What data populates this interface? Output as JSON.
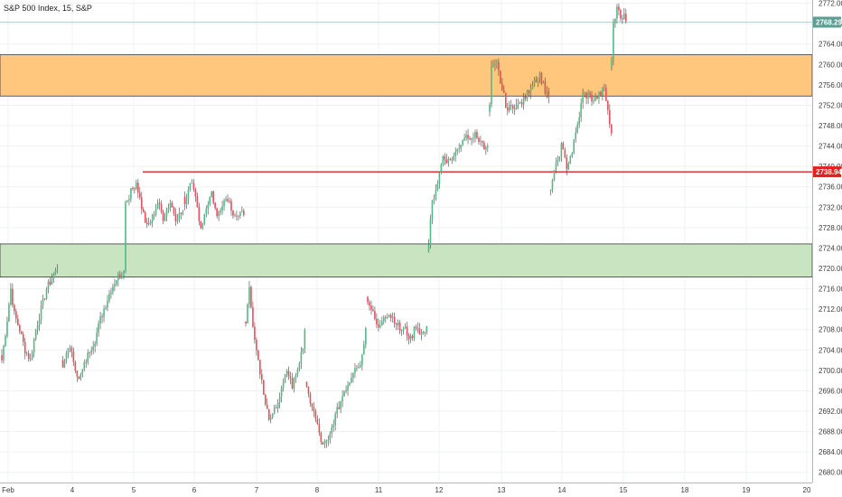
{
  "chart_data": {
    "type": "candlestick",
    "title": "S&P 500 Index, 15, S&P",
    "xlabel": "",
    "ylabel": "",
    "ylim": [
      2676.0,
      2774.0
    ],
    "x_ticks": [
      "Feb",
      "4",
      "5",
      "6",
      "7",
      "8",
      "11",
      "12",
      "13",
      "14",
      "15",
      "18",
      "19",
      "20"
    ],
    "y_ticks": [
      "2772.00",
      "2768.00",
      "2764.00",
      "2760.00",
      "2756.00",
      "2752.00",
      "2748.00",
      "2744.00",
      "2740.00",
      "2736.00",
      "2732.00",
      "2728.00",
      "2724.00",
      "2720.00",
      "2716.00",
      "2712.00",
      "2708.00",
      "2704.00",
      "2700.00",
      "2696.00",
      "2692.00",
      "2688.00",
      "2684.00",
      "2680.00"
    ],
    "grid": true,
    "colors": {
      "up": "#53b987",
      "down": "#eb4d5c",
      "resistance_zone": "#ffc67d",
      "support_zone": "#c8e4c0",
      "level_line": "#e81e1e",
      "price_line": "#5c9e94"
    },
    "zones": [
      {
        "from": 2753.8,
        "to": 2761.9,
        "color": "#ffc67d"
      },
      {
        "from": 2718.3,
        "to": 2724.8,
        "color": "#c8e4c0"
      }
    ],
    "level_line": {
      "value": 2738.94,
      "label": "2738.94",
      "start": "Feb 5"
    },
    "last_price": {
      "value": 2768.29,
      "label": "2768.29"
    },
    "sessions": [
      {
        "label": "Feb",
        "anchors": [
          [
            0,
            2702
          ],
          [
            3,
            2710
          ],
          [
            5,
            2716
          ],
          [
            7,
            2711
          ],
          [
            10,
            2708
          ],
          [
            13,
            2704
          ],
          [
            16,
            2702
          ],
          [
            19,
            2708
          ],
          [
            22,
            2712
          ],
          [
            25,
            2716
          ],
          [
            28,
            2718
          ],
          [
            31,
            2720
          ]
        ]
      },
      {
        "label": "4",
        "anchors": [
          [
            0,
            2700
          ],
          [
            3,
            2705
          ],
          [
            6,
            2702
          ],
          [
            9,
            2698
          ],
          [
            12,
            2701
          ],
          [
            15,
            2704
          ],
          [
            18,
            2706
          ],
          [
            21,
            2710
          ],
          [
            24,
            2713
          ],
          [
            27,
            2716
          ],
          [
            30,
            2718
          ],
          [
            33,
            2719
          ]
        ]
      },
      {
        "label": "5",
        "anchors": [
          [
            0,
            2720
          ],
          [
            1,
            2733
          ],
          [
            4,
            2735
          ],
          [
            7,
            2737
          ],
          [
            10,
            2732
          ],
          [
            13,
            2728
          ],
          [
            16,
            2730
          ],
          [
            19,
            2733
          ],
          [
            22,
            2730
          ],
          [
            26,
            2733
          ],
          [
            29,
            2730
          ],
          [
            33,
            2731
          ]
        ]
      },
      {
        "label": "6",
        "anchors": [
          [
            0,
            2733
          ],
          [
            3,
            2737
          ],
          [
            6,
            2734
          ],
          [
            9,
            2728
          ],
          [
            12,
            2732
          ],
          [
            15,
            2735
          ],
          [
            18,
            2730
          ],
          [
            21,
            2733
          ],
          [
            24,
            2734
          ],
          [
            27,
            2731
          ],
          [
            30,
            2730
          ],
          [
            33,
            2731
          ]
        ]
      },
      {
        "label": "7",
        "anchors": [
          [
            0,
            2710
          ],
          [
            2,
            2716
          ],
          [
            5,
            2706
          ],
          [
            8,
            2700
          ],
          [
            11,
            2693
          ],
          [
            14,
            2690
          ],
          [
            17,
            2693
          ],
          [
            20,
            2696
          ],
          [
            23,
            2700
          ],
          [
            26,
            2697
          ],
          [
            29,
            2700
          ],
          [
            32,
            2705
          ],
          [
            33,
            2708
          ]
        ]
      },
      {
        "label": "8",
        "anchors": [
          [
            0,
            2696
          ],
          [
            3,
            2693
          ],
          [
            6,
            2689
          ],
          [
            9,
            2685
          ],
          [
            12,
            2686
          ],
          [
            15,
            2690
          ],
          [
            18,
            2693
          ],
          [
            21,
            2696
          ],
          [
            24,
            2698
          ],
          [
            27,
            2701
          ],
          [
            30,
            2701
          ],
          [
            33,
            2708
          ]
        ]
      },
      {
        "label": "11",
        "anchors": [
          [
            0,
            2714
          ],
          [
            3,
            2711
          ],
          [
            6,
            2708
          ],
          [
            9,
            2711
          ],
          [
            12,
            2711
          ],
          [
            15,
            2710
          ],
          [
            18,
            2708
          ],
          [
            21,
            2708
          ],
          [
            24,
            2706
          ],
          [
            27,
            2709
          ],
          [
            30,
            2707
          ],
          [
            33,
            2708
          ]
        ]
      },
      {
        "label": "12",
        "anchors": [
          [
            0,
            2725
          ],
          [
            2,
            2733
          ],
          [
            5,
            2737
          ],
          [
            8,
            2742
          ],
          [
            11,
            2741
          ],
          [
            14,
            2742
          ],
          [
            17,
            2744
          ],
          [
            20,
            2746
          ],
          [
            23,
            2746
          ],
          [
            26,
            2746
          ],
          [
            29,
            2745
          ],
          [
            32,
            2743
          ],
          [
            33,
            2744
          ]
        ]
      },
      {
        "label": "13",
        "anchors": [
          [
            0,
            2752
          ],
          [
            1,
            2759
          ],
          [
            4,
            2760
          ],
          [
            7,
            2755
          ],
          [
            10,
            2751
          ],
          [
            13,
            2752
          ],
          [
            16,
            2752
          ],
          [
            19,
            2753
          ],
          [
            22,
            2755
          ],
          [
            25,
            2757
          ],
          [
            28,
            2758
          ],
          [
            31,
            2755
          ],
          [
            33,
            2754
          ]
        ]
      },
      {
        "label": "14",
        "anchors": [
          [
            0,
            2736
          ],
          [
            3,
            2740
          ],
          [
            6,
            2744
          ],
          [
            9,
            2740
          ],
          [
            12,
            2743
          ],
          [
            15,
            2748
          ],
          [
            18,
            2754
          ],
          [
            21,
            2754
          ],
          [
            24,
            2753
          ],
          [
            27,
            2754
          ],
          [
            30,
            2755
          ],
          [
            32,
            2751
          ],
          [
            34,
            2746
          ]
        ]
      },
      {
        "label": "15",
        "anchors": [
          [
            0,
            2761
          ],
          [
            1,
            2768
          ],
          [
            3,
            2771
          ],
          [
            5,
            2769
          ],
          [
            7,
            2770
          ],
          [
            8,
            2768
          ]
        ]
      }
    ]
  }
}
